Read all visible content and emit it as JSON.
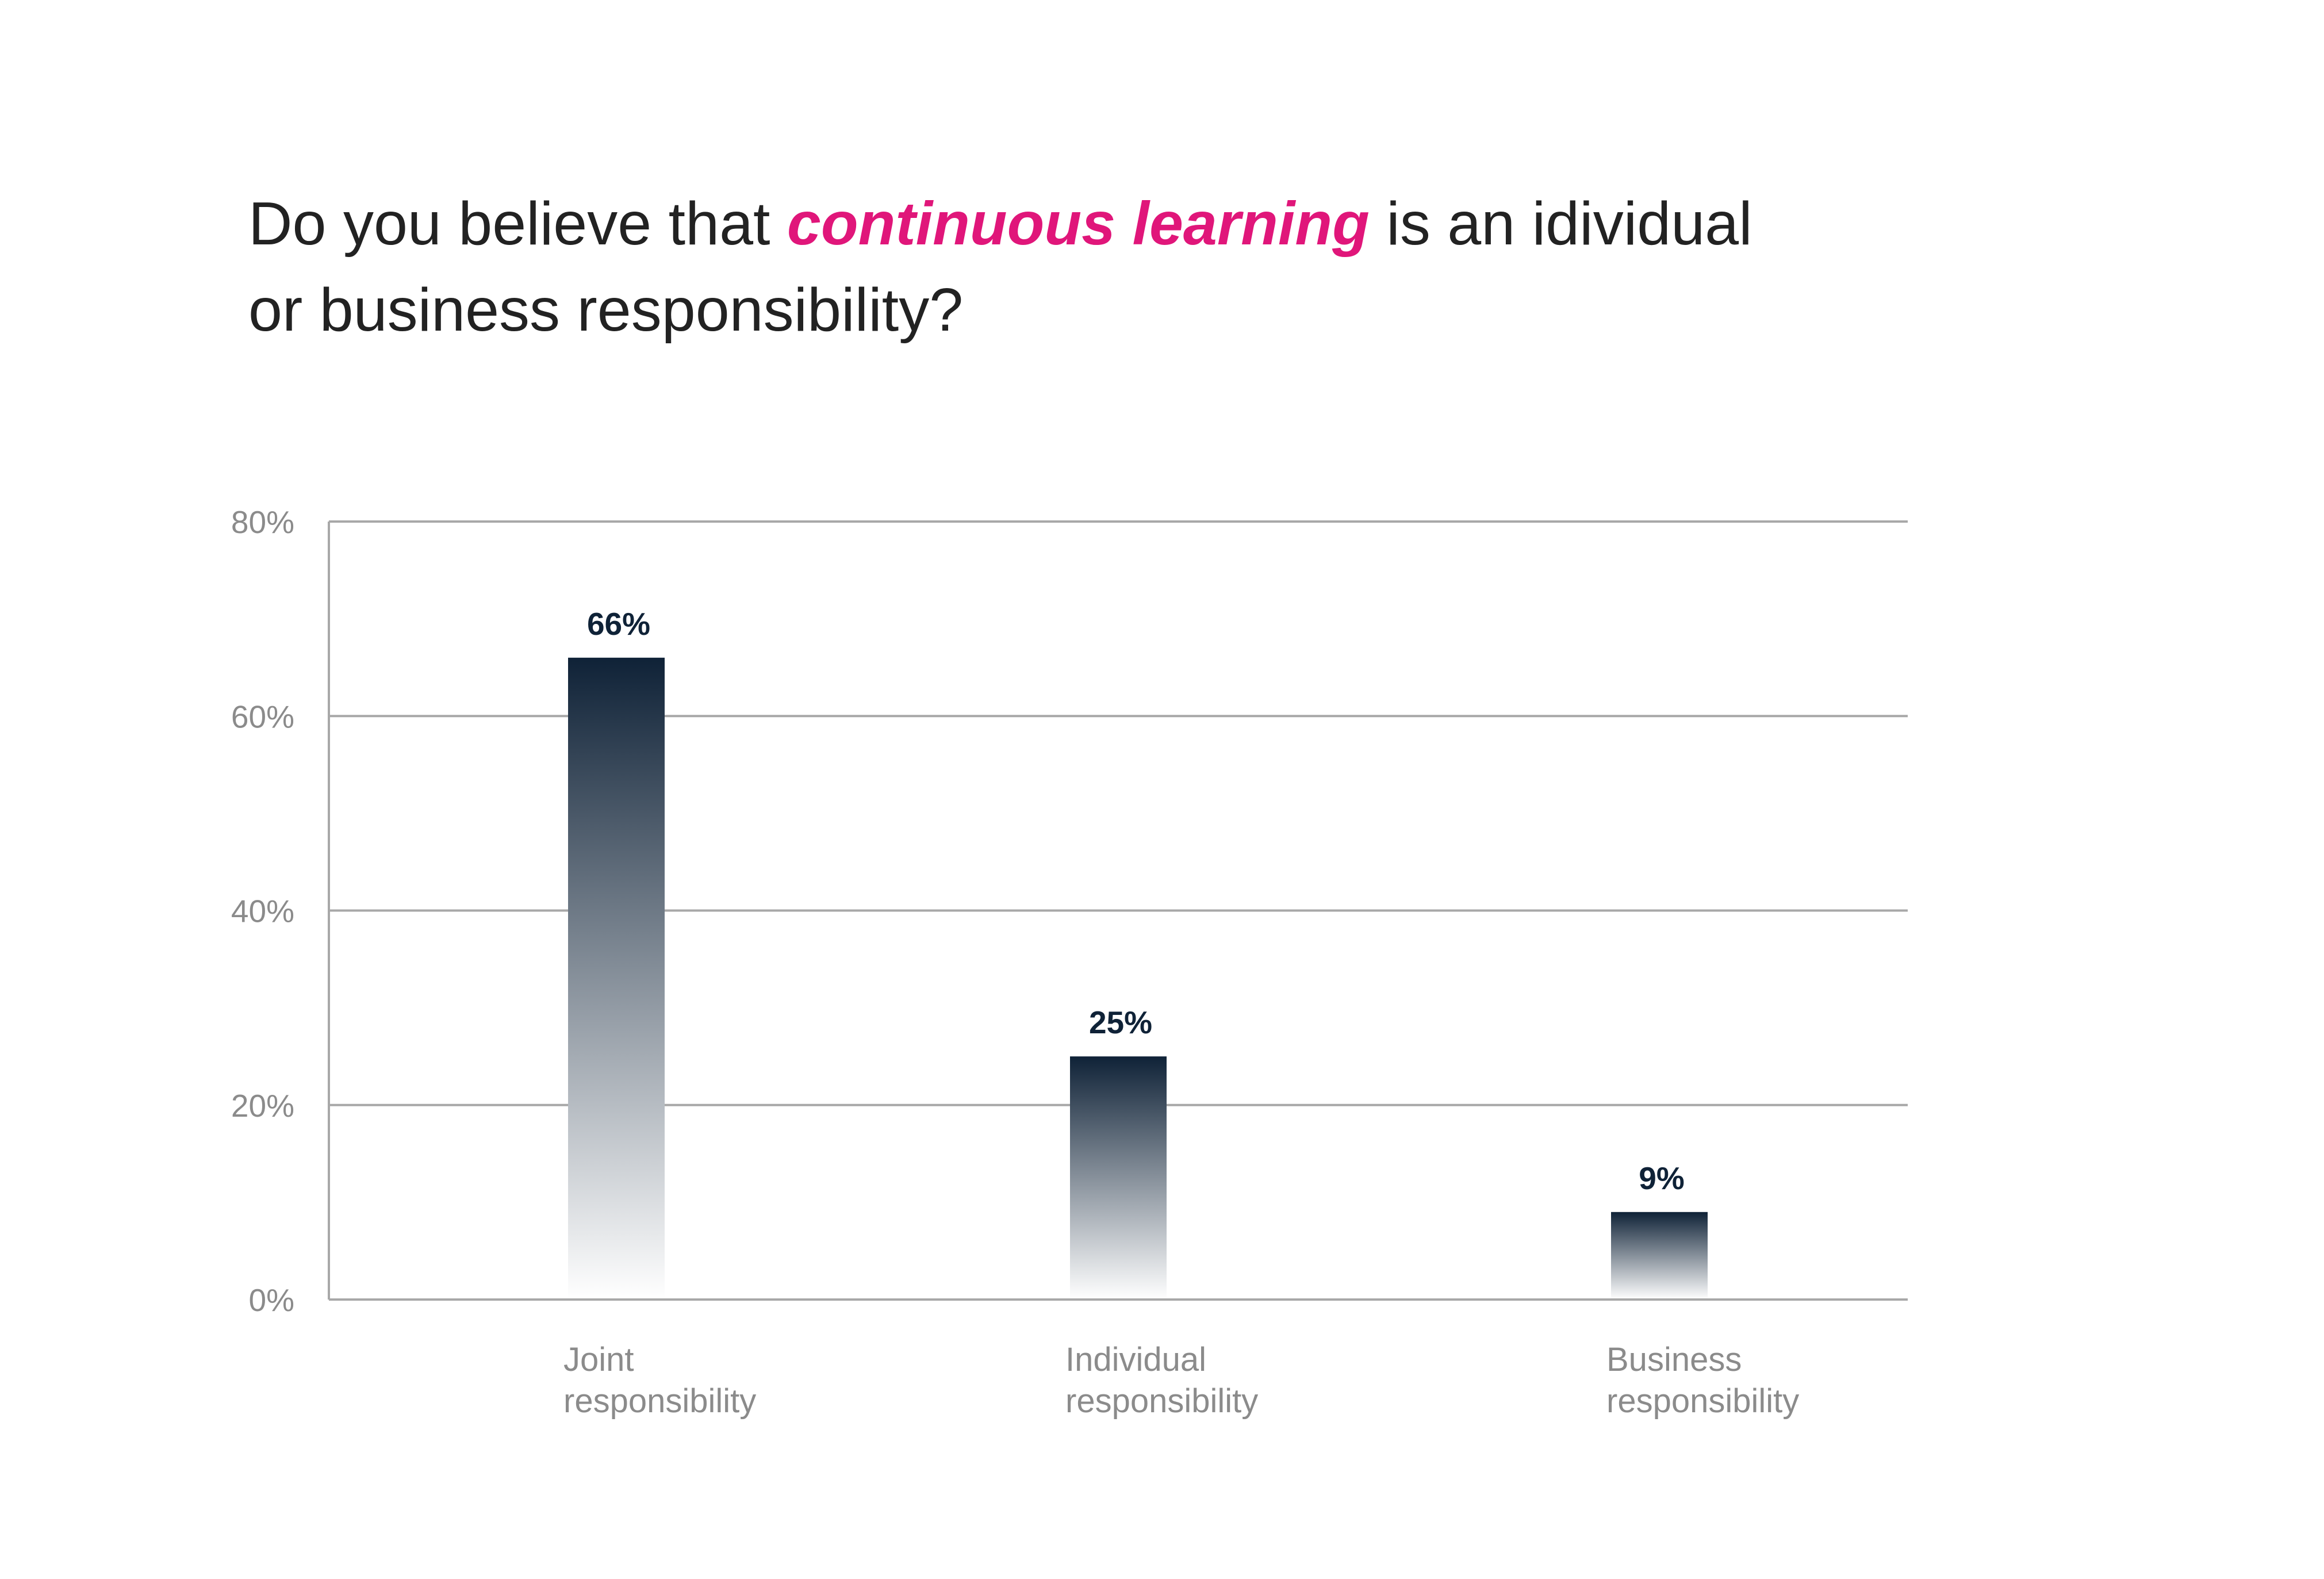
{
  "chart_data": {
    "type": "bar",
    "title": {
      "line1_before": "Do you believe that ",
      "line1_emphasis": "continuous learning",
      "line1_after": " is an idividual",
      "line2": "or business responsibility?"
    },
    "categories": [
      [
        "Joint",
        "responsibility"
      ],
      [
        "Individual",
        "responsibility"
      ],
      [
        "Business",
        "responsibility"
      ]
    ],
    "values": [
      66,
      25,
      9
    ],
    "data_labels": [
      "66%",
      "25%",
      "9%"
    ],
    "y_ticks": [
      0,
      20,
      40,
      60,
      80
    ],
    "y_tick_labels": [
      "0%",
      "20%",
      "40%",
      "60%",
      "80%"
    ],
    "ylim": [
      0,
      80
    ],
    "xlabel": "",
    "ylabel": "",
    "grid": true,
    "legend": "none",
    "colors": {
      "bar_top": "#0f2237",
      "bar_bottom": "#ffffff",
      "emphasis": "#e0167a",
      "title": "#222222",
      "axis_text": "#8b8b8b",
      "grid": "#a8a8a8",
      "data_label": "#0f2237"
    }
  }
}
